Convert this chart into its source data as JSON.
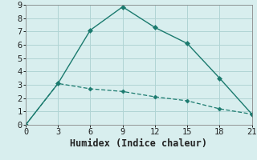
{
  "line1_x": [
    0,
    3,
    6,
    9,
    12,
    15,
    18,
    21
  ],
  "line1_y": [
    0.0,
    3.1,
    7.1,
    8.85,
    7.3,
    6.1,
    3.5,
    0.8
  ],
  "line2_x": [
    0,
    3,
    6,
    9,
    12,
    15,
    18,
    21
  ],
  "line2_y": [
    0.0,
    3.1,
    2.7,
    2.5,
    2.1,
    1.8,
    1.2,
    0.8
  ],
  "line_color": "#1a7a6e",
  "bg_color": "#d8eeee",
  "grid_color": "#b0d4d4",
  "xlabel": "Humidex (Indice chaleur)",
  "xlim": [
    0,
    21
  ],
  "ylim": [
    0,
    9
  ],
  "xticks": [
    0,
    3,
    6,
    9,
    12,
    15,
    18,
    21
  ],
  "yticks": [
    0,
    1,
    2,
    3,
    4,
    5,
    6,
    7,
    8,
    9
  ],
  "xlabel_fontsize": 8.5,
  "tick_fontsize": 7.5
}
